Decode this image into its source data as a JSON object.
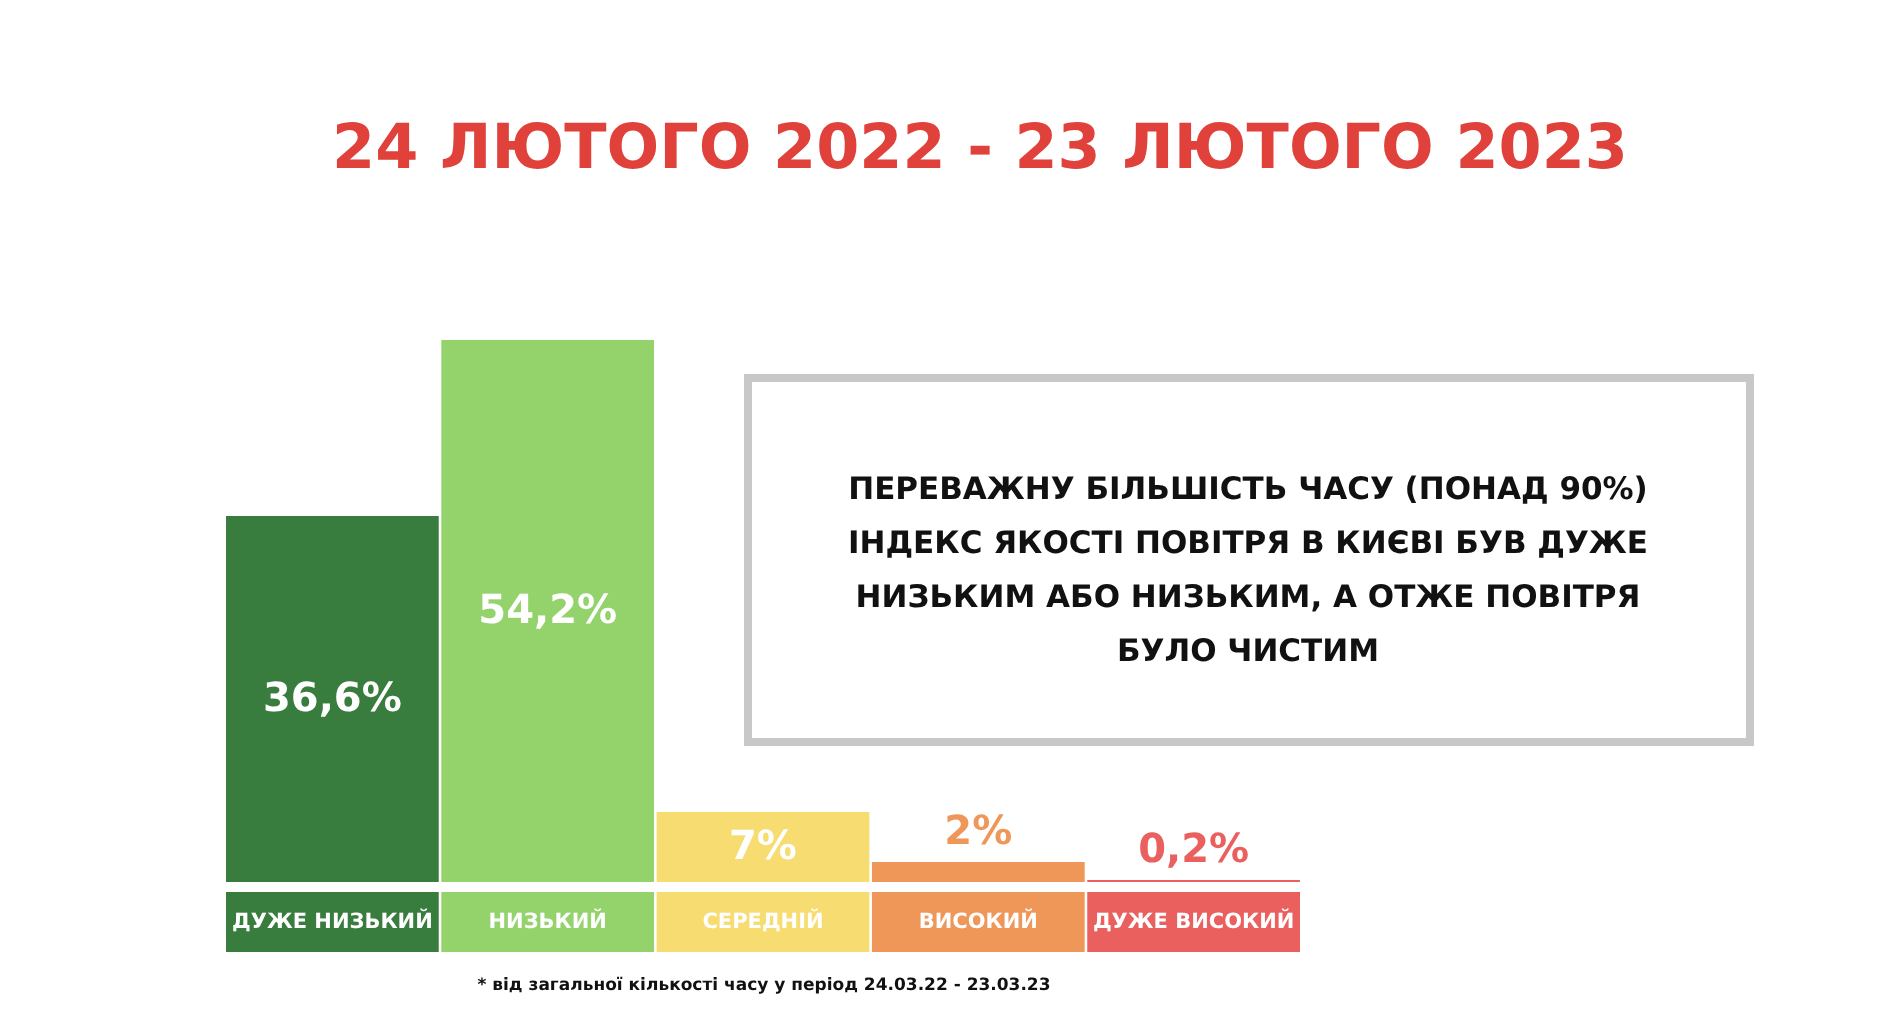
{
  "chart_data": {
    "type": "bar",
    "title": "24 ЛЮТОГО 2022 - 23 ЛЮТОГО 2023",
    "categories": [
      "ДУЖЕ НИЗЬКИЙ",
      "НИЗЬКИЙ",
      "СЕРЕДНІЙ",
      "ВИСОКИЙ",
      "ДУЖЕ ВИСОКИЙ"
    ],
    "values": [
      36.6,
      54.2,
      7,
      2,
      0.2
    ],
    "colors": [
      "#387c3e",
      "#94d36c",
      "#f7dc71",
      "#ef9759",
      "#e9605f"
    ],
    "value_labels": [
      "36,6%",
      "54,2%",
      "7%",
      "2%",
      "0,2%"
    ],
    "annotations": [
      "ПЕРЕВАЖНУ БІЛЬШІСТЬ ЧАСУ (ПОНАД 90%) ІНДЕКС ЯКОСТІ ПОВІТРЯ В КИЄВІ БУВ ДУЖЕ НИЗЬКИМ АБО НИЗЬКИМ, А ОТЖЕ ПОВІТРЯ БУЛО ЧИСТИМ",
      "* від загальної кількості часу у період 24.03.22 - 23.03.23"
    ]
  }
}
